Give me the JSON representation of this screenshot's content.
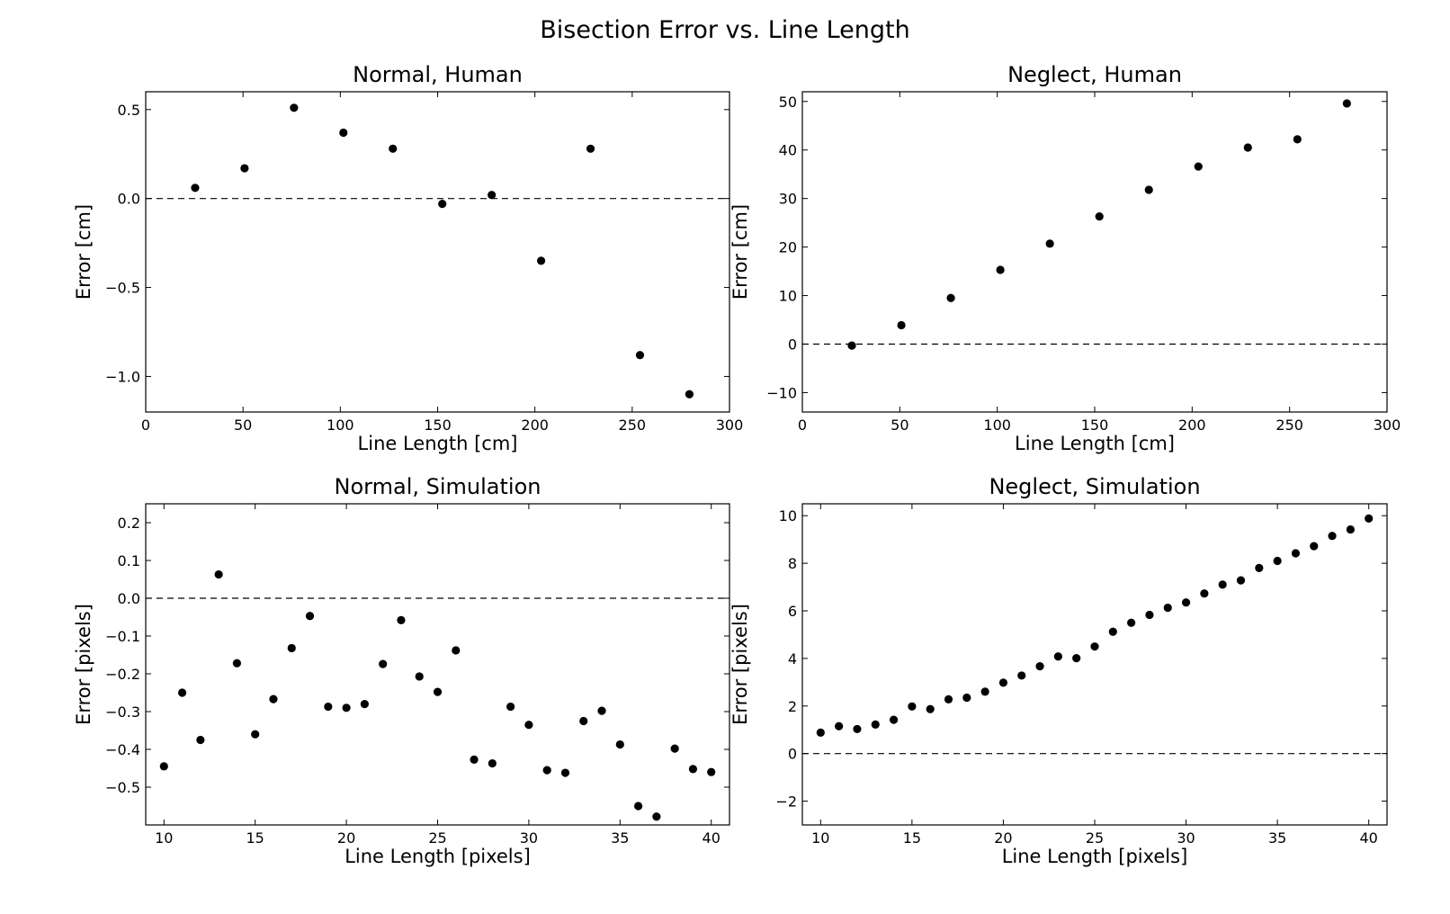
{
  "figure": {
    "title": "Bisection Error vs. Line Length"
  },
  "chart_data": [
    {
      "type": "scatter",
      "title": "Normal, Human",
      "xlabel": "Line Length [cm]",
      "ylabel": "Error [cm]",
      "xlim": [
        0,
        300
      ],
      "ylim": [
        -1.2,
        0.6
      ],
      "xticks": [
        0,
        50,
        100,
        150,
        200,
        250,
        300
      ],
      "xtick_labels": [
        "0",
        "50",
        "100",
        "150",
        "200",
        "250",
        "300"
      ],
      "yticks": [
        -1.0,
        -0.5,
        0.0,
        0.5
      ],
      "ytick_labels": [
        "−1.0",
        "−0.5",
        "0.0",
        "0.5"
      ],
      "grid": false,
      "reference_line": 0,
      "series": [
        {
          "x": [
            25.4,
            50.8,
            76.2,
            101.6,
            127,
            152.4,
            177.8,
            203.2,
            228.6,
            254,
            279.4
          ],
          "y": [
            0.06,
            0.17,
            0.51,
            0.37,
            0.28,
            -0.03,
            0.02,
            -0.35,
            0.28,
            -0.88,
            -1.1
          ]
        }
      ]
    },
    {
      "type": "scatter",
      "title": "Neglect, Human",
      "xlabel": "Line Length [cm]",
      "ylabel": "Error [cm]",
      "xlim": [
        0,
        300
      ],
      "ylim": [
        -14,
        52
      ],
      "xticks": [
        0,
        50,
        100,
        150,
        200,
        250,
        300
      ],
      "xtick_labels": [
        "0",
        "50",
        "100",
        "150",
        "200",
        "250",
        "300"
      ],
      "yticks": [
        -10,
        0,
        10,
        20,
        30,
        40,
        50
      ],
      "ytick_labels": [
        "−10",
        "0",
        "10",
        "20",
        "30",
        "40",
        "50"
      ],
      "grid": false,
      "reference_line": 0,
      "series": [
        {
          "x": [
            25.4,
            50.8,
            76.2,
            101.6,
            127,
            152.4,
            177.8,
            203.2,
            228.6,
            254,
            279.4
          ],
          "y": [
            -0.3,
            3.9,
            9.5,
            15.3,
            20.7,
            26.3,
            31.8,
            36.6,
            40.5,
            42.2,
            49.6
          ]
        }
      ]
    },
    {
      "type": "scatter",
      "title": "Normal, Simulation",
      "xlabel": "Line Length [pixels]",
      "ylabel": "Error [pixels]",
      "xlim": [
        9,
        41
      ],
      "ylim": [
        -0.6,
        0.25
      ],
      "xticks": [
        10,
        15,
        20,
        25,
        30,
        35,
        40
      ],
      "xtick_labels": [
        "10",
        "15",
        "20",
        "25",
        "30",
        "35",
        "40"
      ],
      "yticks": [
        -0.5,
        -0.4,
        -0.3,
        -0.2,
        -0.1,
        0.0,
        0.1,
        0.2
      ],
      "ytick_labels": [
        "−0.5",
        "−0.4",
        "−0.3",
        "−0.2",
        "−0.1",
        "0.0",
        "0.1",
        "0.2"
      ],
      "grid": false,
      "reference_line": 0,
      "series": [
        {
          "x": [
            10,
            11,
            12,
            13,
            14,
            15,
            16,
            17,
            18,
            19,
            20,
            21,
            22,
            23,
            24,
            25,
            26,
            27,
            28,
            29,
            30,
            31,
            32,
            33,
            34,
            35,
            36,
            37,
            38,
            39,
            40
          ],
          "y": [
            -0.445,
            -0.25,
            -0.375,
            0.063,
            -0.172,
            -0.36,
            -0.267,
            -0.132,
            -0.047,
            -0.287,
            -0.29,
            -0.28,
            -0.174,
            -0.058,
            -0.207,
            -0.248,
            -0.138,
            -0.427,
            -0.437,
            -0.287,
            -0.335,
            -0.455,
            -0.462,
            -0.325,
            -0.298,
            -0.387,
            -0.55,
            -0.578,
            -0.398,
            -0.452,
            -0.46
          ]
        }
      ]
    },
    {
      "type": "scatter",
      "title": "Neglect, Simulation",
      "xlabel": "Line Length [pixels]",
      "ylabel": "Error [pixels]",
      "xlim": [
        9,
        41
      ],
      "ylim": [
        -3,
        10.5
      ],
      "xticks": [
        10,
        15,
        20,
        25,
        30,
        35,
        40
      ],
      "xtick_labels": [
        "10",
        "15",
        "20",
        "25",
        "30",
        "35",
        "40"
      ],
      "yticks": [
        -2,
        0,
        2,
        4,
        6,
        8,
        10
      ],
      "ytick_labels": [
        "−2",
        "0",
        "2",
        "4",
        "6",
        "8",
        "10"
      ],
      "grid": false,
      "reference_line": 0,
      "series": [
        {
          "x": [
            10,
            11,
            12,
            13,
            14,
            15,
            16,
            17,
            18,
            19,
            20,
            21,
            22,
            23,
            24,
            25,
            26,
            27,
            28,
            29,
            30,
            31,
            32,
            33,
            34,
            35,
            36,
            37,
            38,
            39,
            40
          ],
          "y": [
            0.88,
            1.15,
            1.03,
            1.22,
            1.42,
            1.98,
            1.87,
            2.28,
            2.35,
            2.6,
            2.98,
            3.28,
            3.67,
            4.08,
            4.01,
            4.5,
            5.12,
            5.5,
            5.83,
            6.13,
            6.35,
            6.73,
            7.1,
            7.28,
            7.8,
            8.1,
            8.42,
            8.72,
            9.15,
            9.42,
            9.88
          ]
        }
      ]
    }
  ]
}
